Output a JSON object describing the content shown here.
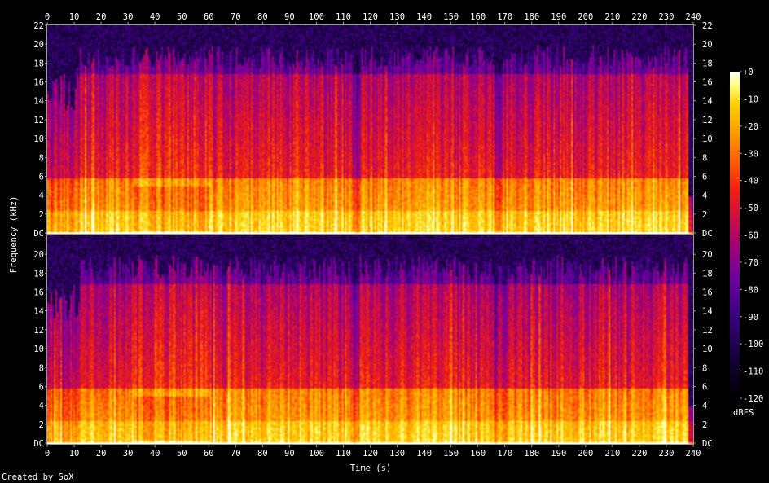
{
  "chart_data": {
    "type": "heatmap",
    "title": "",
    "xlabel": "Time (s)",
    "ylabel": "Frequency (kHz)",
    "xlim": [
      0,
      240
    ],
    "x_ticks": [
      "0",
      "10",
      "20",
      "30",
      "40",
      "50",
      "60",
      "70",
      "80",
      "90",
      "100",
      "110",
      "120",
      "130",
      "140",
      "150",
      "160",
      "170",
      "180",
      "190",
      "200",
      "210",
      "220",
      "230",
      "240"
    ],
    "channels": [
      {
        "name": "",
        "ylim": [
          0,
          22
        ],
        "y_ticks": [
          "DC",
          "2",
          "4",
          "6",
          "8",
          "10",
          "12",
          "14",
          "16",
          "18",
          "20",
          "22"
        ]
      },
      {
        "name": "",
        "ylim": [
          0,
          22
        ],
        "y_ticks": [
          "DC",
          "2",
          "4",
          "6",
          "8",
          "10",
          "12",
          "14",
          "16",
          "18",
          "20"
        ]
      }
    ],
    "colorbar": {
      "unit": "dBFS",
      "range": [
        -120,
        0
      ],
      "ticks": [
        "+0",
        "-10",
        "-20",
        "-30",
        "-40",
        "-50",
        "-60",
        "-70",
        "-80",
        "-90",
        "-100",
        "-110",
        "-120"
      ]
    },
    "footer": "Created by SoX"
  },
  "colors": {
    "background": "#000000",
    "text": "#ffffff",
    "axis": "#9c9c9c",
    "palette": [
      "#000000",
      "#1a0040",
      "#3a0080",
      "#6a00a0",
      "#a0007a",
      "#d01040",
      "#f02010",
      "#ff6000",
      "#ffa000",
      "#ffd000",
      "#ffff80",
      "#ffffff"
    ]
  }
}
